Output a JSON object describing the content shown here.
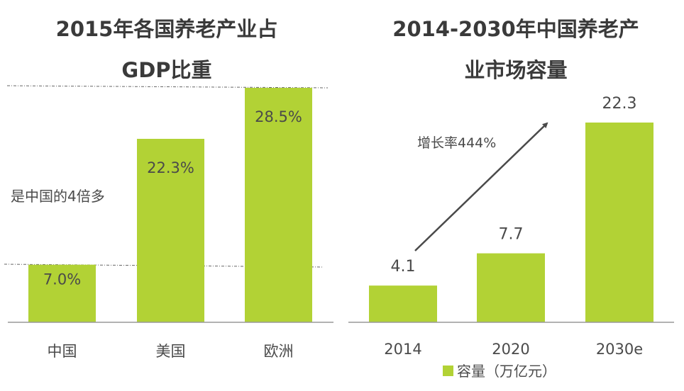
{
  "chart_data": [
    {
      "type": "bar",
      "title_line1": "2015年各国养老产业占",
      "title_line2": "GDP比重",
      "categories": [
        "中国",
        "美国",
        "欧洲"
      ],
      "values": [
        7.0,
        22.3,
        28.5
      ],
      "value_labels": [
        "7.0%",
        "22.3%",
        "28.5%"
      ],
      "annotation": "是中国的4倍多",
      "ylim": [
        0,
        28.5
      ],
      "color": "#b2d235"
    },
    {
      "type": "bar",
      "title_line1": "2014-2030年中国养老产",
      "title_line2": "业市场容量",
      "categories": [
        "2014",
        "2020",
        "2030e"
      ],
      "values": [
        4.1,
        7.7,
        22.3
      ],
      "value_labels": [
        "4.1",
        "7.7",
        "22.3"
      ],
      "annotation": "增长率444%",
      "legend": "容量（万亿元）",
      "ylim": [
        0,
        22.3
      ],
      "color": "#b2d235"
    }
  ]
}
